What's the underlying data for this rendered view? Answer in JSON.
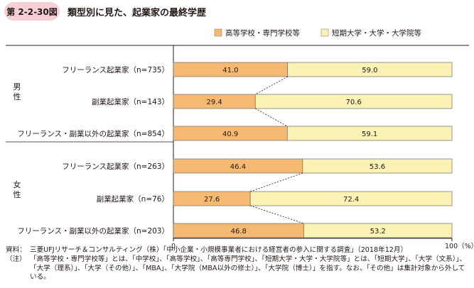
{
  "figure": {
    "label": "第 2-2-30図",
    "title": "類型別に見た、起業家の最終学歴"
  },
  "chart_data": {
    "type": "bar",
    "stacked": true,
    "orientation": "horizontal",
    "xlim": [
      0,
      100
    ],
    "x_ticks": [
      "0",
      "100（%）"
    ],
    "legend_position": "top-right",
    "groups": [
      {
        "label": "男性",
        "categories": [
          "フリーランス起業家（n=735）",
          "副業起業家（n=143）",
          "フリーランス・副業以外の起業家（n=854）"
        ]
      },
      {
        "label": "女性",
        "categories": [
          "フリーランス起業家（n=263）",
          "副業起業家（n=76）",
          "フリーランス・副業以外の起業家（n=203）"
        ]
      }
    ],
    "categories": [
      "フリーランス起業家（n=735）",
      "副業起業家（n=143）",
      "フリーランス・副業以外の起業家（n=854）",
      "フリーランス起業家（n=263）",
      "副業起業家（n=76）",
      "フリーランス・副業以外の起業家（n=203）"
    ],
    "series": [
      {
        "name": "高等学校・専門学校等",
        "color": "#f5b971",
        "values": [
          41.0,
          29.4,
          40.9,
          46.4,
          27.6,
          46.8
        ],
        "labels": [
          "41.0",
          "29.4",
          "40.9",
          "46.4",
          "27.6",
          "46.8"
        ]
      },
      {
        "name": "短期大学・大学・大学院等",
        "color": "#fbf3b5",
        "values": [
          59.0,
          70.6,
          59.1,
          53.6,
          72.4,
          53.2
        ],
        "labels": [
          "59.0",
          "70.6",
          "59.1",
          "53.6",
          "72.4",
          "53.2"
        ]
      }
    ]
  },
  "notes": [
    {
      "head": "資料：",
      "text": "三菱UFJリサーチ＆コンサルティング（株）「中小企業・小規模事業者における経営者の参入に関する調査」（2018年12月）"
    },
    {
      "head": "（注）",
      "text": "「高等学校・専門学校等」とは、「中学校」、「高等学校」、「高等専門学校」、「短期大学・大学・大学院等」とは、「短期大学」、「大学（文系）」、「大学（理系）」、「大学（その他）」、「MBA」、「大学院（MBA以外の修士）」、「大学院（博士）」を指す。なお、「その他」は集計対象から外している。"
    }
  ]
}
